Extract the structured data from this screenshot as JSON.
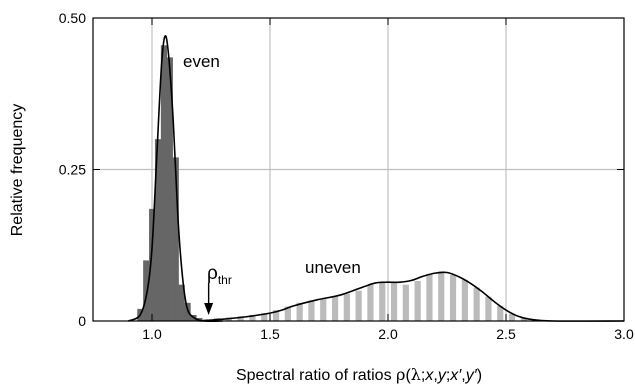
{
  "chart_data": {
    "type": "bar",
    "xlabel_main": "Spectral ratio of ratios ",
    "xlabel_rho": "ρ",
    "xlabel_open": "(",
    "xlabel_lambda": "λ",
    "xlabel_sep1": ";",
    "xlabel_x": "x",
    "xlabel_sep2": ",",
    "xlabel_y": "y",
    "xlabel_sep3": ";",
    "xlabel_xp": "x′",
    "xlabel_sep4": ",",
    "xlabel_yp": "y′",
    "xlabel_close": ")",
    "ylabel": "Relative frequency",
    "xlim": [
      0.75,
      3.0
    ],
    "ylim": [
      0,
      0.5
    ],
    "x_ticks": [
      1.0,
      1.5,
      2.0,
      2.5,
      3.0
    ],
    "x_tick_labels": [
      "1.0",
      "1.5",
      "2.0",
      "2.5",
      "3.0"
    ],
    "y_ticks": [
      0,
      0.25,
      0.5
    ],
    "y_tick_labels": [
      "0",
      "0.25",
      "0.50"
    ],
    "grid": true,
    "bin_width": 0.025,
    "series": [
      {
        "name": "even",
        "color": "#666666",
        "bins": [
          {
            "x": 0.95,
            "y": 0.02
          },
          {
            "x": 0.975,
            "y": 0.1
          },
          {
            "x": 1.0,
            "y": 0.185
          },
          {
            "x": 1.025,
            "y": 0.3
          },
          {
            "x": 1.05,
            "y": 0.455
          },
          {
            "x": 1.075,
            "y": 0.435
          },
          {
            "x": 1.1,
            "y": 0.27
          },
          {
            "x": 1.125,
            "y": 0.06
          },
          {
            "x": 1.15,
            "y": 0.03
          },
          {
            "x": 1.175,
            "y": 0.01
          },
          {
            "x": 1.2,
            "y": 0.005
          }
        ],
        "fit": [
          [
            0.9,
            0.0
          ],
          [
            0.95,
            0.01
          ],
          [
            0.98,
            0.05
          ],
          [
            1.0,
            0.12
          ],
          [
            1.02,
            0.27
          ],
          [
            1.04,
            0.42
          ],
          [
            1.055,
            0.47
          ],
          [
            1.07,
            0.44
          ],
          [
            1.09,
            0.33
          ],
          [
            1.11,
            0.17
          ],
          [
            1.13,
            0.07
          ],
          [
            1.15,
            0.02
          ],
          [
            1.18,
            0.005
          ],
          [
            1.22,
            0.0
          ],
          [
            1.3,
            0.0
          ]
        ]
      },
      {
        "name": "uneven",
        "color": "#bbbbbb",
        "bins": [
          {
            "x": 1.175,
            "y": 0.002
          },
          {
            "x": 1.225,
            "y": 0.003
          },
          {
            "x": 1.275,
            "y": 0.005
          },
          {
            "x": 1.325,
            "y": 0.006
          },
          {
            "x": 1.375,
            "y": 0.008
          },
          {
            "x": 1.425,
            "y": 0.01
          },
          {
            "x": 1.475,
            "y": 0.013
          },
          {
            "x": 1.525,
            "y": 0.018
          },
          {
            "x": 1.575,
            "y": 0.024
          },
          {
            "x": 1.625,
            "y": 0.03
          },
          {
            "x": 1.675,
            "y": 0.034
          },
          {
            "x": 1.725,
            "y": 0.037
          },
          {
            "x": 1.775,
            "y": 0.04
          },
          {
            "x": 1.825,
            "y": 0.045
          },
          {
            "x": 1.875,
            "y": 0.05
          },
          {
            "x": 1.925,
            "y": 0.06
          },
          {
            "x": 1.975,
            "y": 0.064
          },
          {
            "x": 2.025,
            "y": 0.065
          },
          {
            "x": 2.075,
            "y": 0.06
          },
          {
            "x": 2.125,
            "y": 0.066
          },
          {
            "x": 2.175,
            "y": 0.078
          },
          {
            "x": 2.225,
            "y": 0.082
          },
          {
            "x": 2.275,
            "y": 0.076
          },
          {
            "x": 2.325,
            "y": 0.068
          },
          {
            "x": 2.375,
            "y": 0.055
          },
          {
            "x": 2.425,
            "y": 0.04
          },
          {
            "x": 2.475,
            "y": 0.025
          },
          {
            "x": 2.525,
            "y": 0.012
          },
          {
            "x": 2.575,
            "y": 0.005
          },
          {
            "x": 2.625,
            "y": 0.002
          }
        ],
        "fit": [
          [
            1.2,
            0.0
          ],
          [
            1.3,
            0.003
          ],
          [
            1.4,
            0.007
          ],
          [
            1.5,
            0.013
          ],
          [
            1.55,
            0.018
          ],
          [
            1.6,
            0.025
          ],
          [
            1.7,
            0.035
          ],
          [
            1.8,
            0.043
          ],
          [
            1.9,
            0.057
          ],
          [
            1.95,
            0.063
          ],
          [
            2.0,
            0.064
          ],
          [
            2.05,
            0.064
          ],
          [
            2.1,
            0.067
          ],
          [
            2.15,
            0.074
          ],
          [
            2.2,
            0.079
          ],
          [
            2.25,
            0.08
          ],
          [
            2.3,
            0.073
          ],
          [
            2.35,
            0.062
          ],
          [
            2.4,
            0.048
          ],
          [
            2.45,
            0.032
          ],
          [
            2.5,
            0.018
          ],
          [
            2.55,
            0.008
          ],
          [
            2.6,
            0.003
          ],
          [
            2.7,
            0.0
          ],
          [
            3.0,
            0.0
          ]
        ]
      }
    ],
    "annotations": {
      "even_label": "even",
      "uneven_label": "uneven",
      "threshold_symbol": "ρ",
      "threshold_subscript": "thr",
      "threshold_x": 1.24
    }
  }
}
